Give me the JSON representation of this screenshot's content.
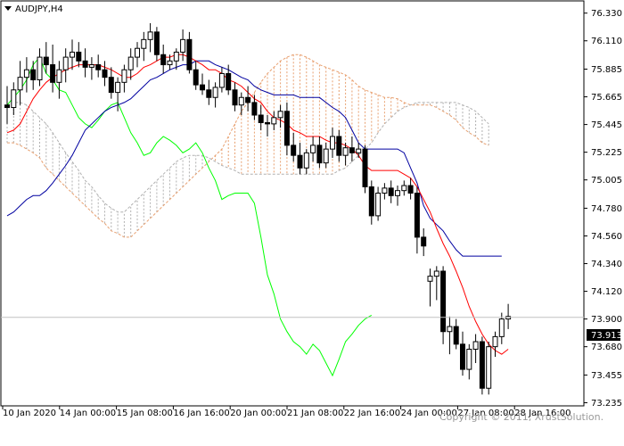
{
  "chart_title": "AUDJPY,H4",
  "copyright": "Copyright © 2011, XrustSolution.",
  "current_price_label": "73.913",
  "colors": {
    "background": "#ffffff",
    "candle": "#000000",
    "tenkan": "#ff0000",
    "kijun": "#0000a0",
    "chikou": "#00ff00",
    "kumo_bull": "#e8a070",
    "kumo_bear": "#b0b0b0",
    "price_line": "#c0c0c0"
  },
  "chart_data": {
    "type": "candlestick-ichimoku",
    "symbol": "AUDJPY",
    "timeframe": "H4",
    "ylim": [
      73.21,
      76.42
    ],
    "y_ticks": [
      "76.330",
      "76.110",
      "75.885",
      "75.665",
      "75.445",
      "75.225",
      "75.005",
      "74.780",
      "74.560",
      "74.340",
      "74.120",
      "73.900",
      "73.680",
      "73.455",
      "73.235"
    ],
    "x_labels": [
      "10 Jan 2020",
      "14 Jan 00:00",
      "15 Jan 08:00",
      "16 Jan 16:00",
      "20 Jan 00:00",
      "21 Jan 08:00",
      "22 Jan 16:00",
      "24 Jan 00:00",
      "27 Jan 08:00",
      "28 Jan 16:00"
    ],
    "current_price": 73.913,
    "candles": [
      [
        75.6,
        75.75,
        75.45,
        75.58
      ],
      [
        75.58,
        75.78,
        75.52,
        75.72
      ],
      [
        75.72,
        75.95,
        75.6,
        75.82
      ],
      [
        75.82,
        75.98,
        75.7,
        75.88
      ],
      [
        75.88,
        75.95,
        75.72,
        75.8
      ],
      [
        75.8,
        76.05,
        75.75,
        75.98
      ],
      [
        75.98,
        76.1,
        75.85,
        75.92
      ],
      [
        75.92,
        76.08,
        75.7,
        75.78
      ],
      [
        75.78,
        75.95,
        75.65,
        75.88
      ],
      [
        75.88,
        76.05,
        75.78,
        75.98
      ],
      [
        75.98,
        76.12,
        75.88,
        76.02
      ],
      [
        76.02,
        76.1,
        75.9,
        75.95
      ],
      [
        75.95,
        76.05,
        75.82,
        75.9
      ],
      [
        75.9,
        75.98,
        75.8,
        75.92
      ],
      [
        75.92,
        76.0,
        75.82,
        75.88
      ],
      [
        75.88,
        75.95,
        75.75,
        75.82
      ],
      [
        75.82,
        75.9,
        75.65,
        75.7
      ],
      [
        75.7,
        75.82,
        75.55,
        75.78
      ],
      [
        75.78,
        75.92,
        75.7,
        75.88
      ],
      [
        75.88,
        76.05,
        75.8,
        75.98
      ],
      [
        75.98,
        76.1,
        75.9,
        76.05
      ],
      [
        76.05,
        76.18,
        75.95,
        76.12
      ],
      [
        76.12,
        76.25,
        76.02,
        76.18
      ],
      [
        76.18,
        76.22,
        75.95,
        76.0
      ],
      [
        76.0,
        76.08,
        75.85,
        75.92
      ],
      [
        75.92,
        76.0,
        75.88,
        75.95
      ],
      [
        75.95,
        76.05,
        75.88,
        76.02
      ],
      [
        76.02,
        76.2,
        75.95,
        76.12
      ],
      [
        76.12,
        76.18,
        75.85,
        75.88
      ],
      [
        75.88,
        75.95,
        75.72,
        75.76
      ],
      [
        75.76,
        75.85,
        75.68,
        75.72
      ],
      [
        75.72,
        75.8,
        75.6,
        75.66
      ],
      [
        75.66,
        75.78,
        75.58,
        75.74
      ],
      [
        75.74,
        75.9,
        75.7,
        75.85
      ],
      [
        75.85,
        75.92,
        75.68,
        75.72
      ],
      [
        75.72,
        75.78,
        75.55,
        75.6
      ],
      [
        75.6,
        75.7,
        75.52,
        75.66
      ],
      [
        75.66,
        75.75,
        75.55,
        75.62
      ],
      [
        75.62,
        75.68,
        75.48,
        75.52
      ],
      [
        75.52,
        75.6,
        75.4,
        75.46
      ],
      [
        75.46,
        75.52,
        75.35,
        75.45
      ],
      [
        75.45,
        75.55,
        75.4,
        75.5
      ],
      [
        75.5,
        75.6,
        75.42,
        75.55
      ],
      [
        75.55,
        75.62,
        75.2,
        75.28
      ],
      [
        75.28,
        75.38,
        75.15,
        75.2
      ],
      [
        75.2,
        75.3,
        75.05,
        75.1
      ],
      [
        75.1,
        75.25,
        75.05,
        75.22
      ],
      [
        75.22,
        75.35,
        75.15,
        75.28
      ],
      [
        75.28,
        75.35,
        75.1,
        75.14
      ],
      [
        75.14,
        75.3,
        75.1,
        75.25
      ],
      [
        75.25,
        75.42,
        75.18,
        75.35
      ],
      [
        75.35,
        75.4,
        75.15,
        75.2
      ],
      [
        75.2,
        75.3,
        75.12,
        75.26
      ],
      [
        75.26,
        75.35,
        75.15,
        75.22
      ],
      [
        75.22,
        75.3,
        75.18,
        75.25
      ],
      [
        75.25,
        75.28,
        74.9,
        74.95
      ],
      [
        74.95,
        75.0,
        74.65,
        74.72
      ],
      [
        74.72,
        74.95,
        74.68,
        74.9
      ],
      [
        74.9,
        74.98,
        74.85,
        74.94
      ],
      [
        74.94,
        75.0,
        74.82,
        74.88
      ],
      [
        74.88,
        74.96,
        74.8,
        74.92
      ],
      [
        74.92,
        75.0,
        74.88,
        74.96
      ],
      [
        74.96,
        75.02,
        74.85,
        74.9
      ],
      [
        74.9,
        74.95,
        74.42,
        74.55
      ],
      [
        74.55,
        74.62,
        74.4,
        74.48
      ],
      [
        74.2,
        74.3,
        74.0,
        74.24
      ],
      [
        74.24,
        74.32,
        74.05,
        74.28
      ],
      [
        74.28,
        74.32,
        73.7,
        73.8
      ],
      [
        73.8,
        73.92,
        73.62,
        73.84
      ],
      [
        73.84,
        73.9,
        73.66,
        73.7
      ],
      [
        73.7,
        73.8,
        73.45,
        73.5
      ],
      [
        73.5,
        73.7,
        73.42,
        73.66
      ],
      [
        73.66,
        73.78,
        73.55,
        73.72
      ],
      [
        73.72,
        73.76,
        73.3,
        73.35
      ],
      [
        73.35,
        73.72,
        73.3,
        73.68
      ],
      [
        73.68,
        73.8,
        73.6,
        73.76
      ],
      [
        73.76,
        73.95,
        73.7,
        73.9
      ],
      [
        73.9,
        74.02,
        73.82,
        73.92
      ]
    ],
    "tenkan": [
      75.38,
      75.4,
      75.45,
      75.55,
      75.65,
      75.72,
      75.78,
      75.82,
      75.85,
      75.88,
      75.9,
      75.92,
      75.92,
      75.92,
      75.92,
      75.9,
      75.88,
      75.85,
      75.82,
      75.82,
      75.85,
      75.9,
      75.92,
      75.95,
      75.98,
      75.98,
      76.0,
      76.0,
      75.98,
      75.95,
      75.92,
      75.88,
      75.88,
      75.85,
      75.8,
      75.78,
      75.75,
      75.7,
      75.65,
      75.62,
      75.55,
      75.5,
      75.48,
      75.45,
      75.4,
      75.38,
      75.35,
      75.35,
      75.35,
      75.32,
      75.3,
      75.3,
      75.28,
      75.25,
      75.2,
      75.12,
      75.08,
      75.08,
      75.08,
      75.08,
      75.08,
      75.05,
      75.02,
      74.95,
      74.85,
      74.75,
      74.62,
      74.5,
      74.4,
      74.28,
      74.15,
      74.0,
      73.88,
      73.78,
      73.7,
      73.65,
      73.62,
      73.66
    ],
    "kijun": [
      74.72,
      74.75,
      74.8,
      74.85,
      74.88,
      74.88,
      74.92,
      74.98,
      75.05,
      75.12,
      75.2,
      75.3,
      75.4,
      75.45,
      75.5,
      75.55,
      75.58,
      75.6,
      75.62,
      75.65,
      75.7,
      75.75,
      75.8,
      75.82,
      75.85,
      75.88,
      75.9,
      75.92,
      75.92,
      75.95,
      75.95,
      75.95,
      75.92,
      75.9,
      75.88,
      75.85,
      75.82,
      75.8,
      75.75,
      75.72,
      75.7,
      75.68,
      75.68,
      75.68,
      75.68,
      75.66,
      75.66,
      75.66,
      75.66,
      75.62,
      75.58,
      75.55,
      75.5,
      75.4,
      75.3,
      75.25,
      75.25,
      75.25,
      75.25,
      75.25,
      75.25,
      75.22,
      75.1,
      74.98,
      74.8,
      74.7,
      74.65,
      74.6,
      74.52,
      74.45,
      74.4,
      74.4,
      74.4,
      74.4,
      74.4,
      74.4,
      74.4
    ],
    "chikou": [
      75.6,
      75.66,
      75.72,
      75.8,
      75.92,
      75.98,
      75.85,
      75.8,
      75.72,
      75.7,
      75.6,
      75.5,
      75.45,
      75.42,
      75.48,
      75.55,
      75.6,
      75.62,
      75.5,
      75.38,
      75.3,
      75.2,
      75.22,
      75.3,
      75.35,
      75.32,
      75.28,
      75.22,
      75.25,
      75.3,
      75.22,
      75.1,
      75.0,
      74.85,
      74.88,
      74.9,
      74.9,
      74.9,
      74.82,
      74.55,
      74.25,
      74.1,
      73.9,
      73.8,
      73.72,
      73.68,
      73.62,
      73.7,
      73.65,
      73.55,
      73.45,
      73.58,
      73.72,
      73.78,
      73.85,
      73.9,
      73.93
    ],
    "span_a": [
      75.3,
      75.3,
      75.28,
      75.25,
      75.22,
      75.18,
      75.1,
      75.05,
      75.0,
      74.95,
      74.9,
      74.85,
      74.8,
      74.75,
      74.7,
      74.66,
      74.6,
      74.58,
      74.55,
      74.55,
      74.6,
      74.65,
      74.7,
      74.75,
      74.8,
      74.85,
      74.9,
      74.95,
      75.0,
      75.05,
      75.1,
      75.15,
      75.2,
      75.25,
      75.35,
      75.45,
      75.55,
      75.62,
      75.7,
      75.78,
      75.85,
      75.9,
      75.95,
      75.98,
      76.0,
      76.0,
      75.98,
      75.95,
      75.92,
      75.9,
      75.88,
      75.86,
      75.84,
      75.8,
      75.75,
      75.72,
      75.7,
      75.68,
      75.66,
      75.66,
      75.65,
      75.62,
      75.6,
      75.6,
      75.6,
      75.6,
      75.58,
      75.55,
      75.52,
      75.48,
      75.42,
      75.38,
      75.35,
      75.3,
      75.28
    ],
    "span_b": [
      75.6,
      75.62,
      75.62,
      75.6,
      75.55,
      75.5,
      75.45,
      75.38,
      75.3,
      75.22,
      75.15,
      75.08,
      75.0,
      74.95,
      74.88,
      74.82,
      74.78,
      74.75,
      74.75,
      74.8,
      74.85,
      74.9,
      74.95,
      75.0,
      75.05,
      75.1,
      75.15,
      75.18,
      75.2,
      75.2,
      75.2,
      75.18,
      75.15,
      75.12,
      75.1,
      75.08,
      75.05,
      75.05,
      75.05,
      75.05,
      75.05,
      75.05,
      75.05,
      75.05,
      75.05,
      75.05,
      75.05,
      75.05,
      75.05,
      75.05,
      75.05,
      75.08,
      75.1,
      75.15,
      75.2,
      75.25,
      75.3,
      75.38,
      75.45,
      75.5,
      75.55,
      75.58,
      75.6,
      75.62,
      75.62,
      75.62,
      75.62,
      75.62,
      75.62,
      75.62,
      75.6,
      75.58,
      75.55,
      75.5,
      75.45
    ]
  }
}
